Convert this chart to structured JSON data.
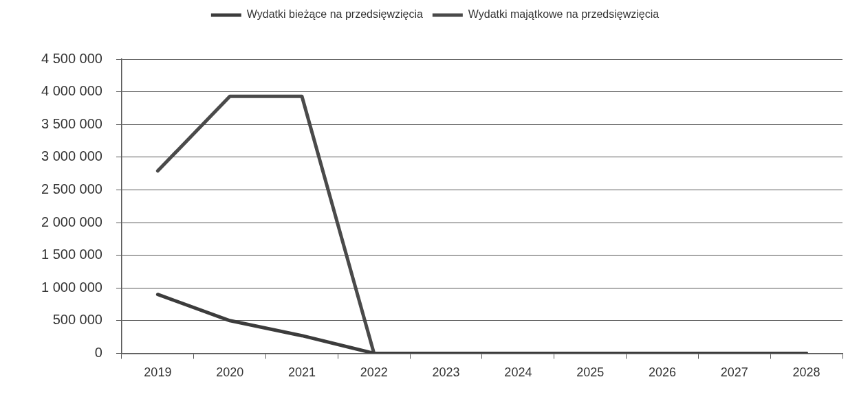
{
  "chart_data": {
    "type": "line",
    "categories": [
      "2019",
      "2020",
      "2021",
      "2022",
      "2023",
      "2024",
      "2025",
      "2026",
      "2027",
      "2028"
    ],
    "series": [
      {
        "name": "Wydatki bieżące na przedsięwzięcia",
        "color": "#3c3c3c",
        "values": [
          900000,
          500000,
          270000,
          0,
          0,
          0,
          0,
          0,
          0,
          0
        ]
      },
      {
        "name": "Wydatki majątkowe na przedsięwzięcia",
        "color": "#4a4a4a",
        "values": [
          2790000,
          3930000,
          3930000,
          0,
          0,
          0,
          0,
          0,
          0,
          0
        ]
      }
    ],
    "ylim": [
      0,
      4500000
    ],
    "yticks": [
      0,
      {
        "value": 500000,
        "label": "500 000"
      },
      {
        "value": 1000000,
        "label": "1 000 000"
      },
      {
        "value": 1500000,
        "label": "1 500 000"
      },
      {
        "value": 2000000,
        "label": "2 000 000"
      },
      {
        "value": 2500000,
        "label": "2 500 000"
      },
      {
        "value": 3000000,
        "label": "3 000 000"
      },
      {
        "value": 3500000,
        "label": "3 500 000"
      },
      {
        "value": 4000000,
        "label": "4 000 000"
      },
      {
        "value": 4500000,
        "label": "4 500 000"
      }
    ],
    "grid": "y",
    "legend": "top",
    "marker": "none",
    "line_style": "solid"
  }
}
